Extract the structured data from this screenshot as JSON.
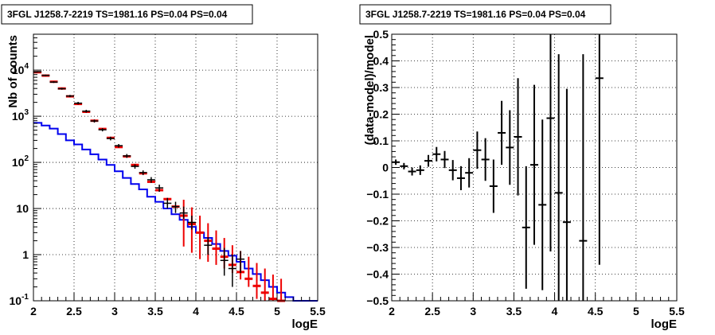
{
  "chart_data": [
    {
      "type": "step",
      "title": "3FGL J1258.7-2219 TS=1981.16 PS=0.04 PS=0.04",
      "xlabel": "logE",
      "ylabel": "Nb of counts",
      "xlim": [
        2,
        5.5
      ],
      "ylim": [
        0.1,
        60000
      ],
      "yscale": "log",
      "grid": true,
      "xticks": [
        "2",
        "2.5",
        "3",
        "3.5",
        "4",
        "4.5",
        "5",
        "5.5"
      ],
      "yticks": [
        {
          "v": 0.1,
          "base": "10",
          "exp": "-1"
        },
        {
          "v": 1,
          "base": "1",
          "exp": ""
        },
        {
          "v": 10,
          "base": "10",
          "exp": ""
        },
        {
          "v": 100,
          "base": "10",
          "exp": "2"
        },
        {
          "v": 1000,
          "base": "10",
          "exp": "3"
        },
        {
          "v": 10000,
          "base": "10",
          "exp": "4"
        }
      ],
      "bin_edges": [
        2,
        2.1,
        2.2,
        2.3,
        2.4,
        2.5,
        2.6,
        2.7,
        2.8,
        2.9,
        3.0,
        3.1,
        3.2,
        3.3,
        3.4,
        3.5,
        3.6,
        3.7,
        3.8,
        3.9,
        4.0,
        4.1,
        4.2,
        4.3,
        4.4,
        4.5,
        4.6,
        4.7,
        4.8,
        4.9,
        5.0,
        5.1,
        5.2,
        5.3,
        5.4,
        5.5
      ],
      "series": [
        {
          "kind": "model-step",
          "color": "#0000ee",
          "values": [
            720,
            630,
            540,
            410,
            300,
            245,
            190,
            150,
            115,
            88,
            64,
            46,
            34,
            26,
            18,
            14,
            10,
            7.5,
            5.7,
            4.0,
            3.0,
            2.3,
            1.7,
            1.2,
            0.95,
            0.7,
            0.5,
            0.38,
            0.28,
            0.2,
            0.15,
            0.12,
            0.1,
            0.1,
            0.1
          ]
        },
        {
          "kind": "model-prediction",
          "color": "#ee0000",
          "x": [
            2.05,
            2.15,
            2.25,
            2.35,
            2.45,
            2.55,
            2.65,
            2.75,
            2.85,
            2.95,
            3.05,
            3.15,
            3.25,
            3.35,
            3.45,
            3.55,
            3.65,
            3.75,
            3.85,
            3.95,
            4.05,
            4.15,
            4.25,
            4.35,
            4.45,
            4.55,
            4.65,
            4.75,
            4.85,
            4.95,
            5.05
          ],
          "y": [
            9000,
            7600,
            5600,
            4000,
            2700,
            1850,
            1250,
            800,
            530,
            340,
            215,
            135,
            88,
            58,
            38,
            25,
            16,
            11,
            7.0,
            4.6,
            3.0,
            2.0,
            1.35,
            0.9,
            0.6,
            0.42,
            0.3,
            0.21,
            0.15,
            0.11,
            0.1
          ],
          "yerr_lo": [
            9000,
            7600,
            5600,
            4000,
            2700,
            1850,
            1250,
            800,
            530,
            340,
            215,
            135,
            88,
            58,
            38,
            25,
            16,
            11,
            7.0,
            4.6,
            3.0,
            2.0,
            1.35,
            0.9,
            0.6,
            0.42,
            0.3,
            0.21,
            0.15,
            0.11,
            0.1
          ],
          "yerr_hi": [
            9000,
            7600,
            5600,
            4000,
            2700,
            1850,
            1250,
            800,
            530,
            340,
            215,
            135,
            88,
            58,
            38,
            25,
            16,
            11,
            7.0,
            4.6,
            3.0,
            2.0,
            1.35,
            0.9,
            0.6,
            0.42,
            0.3,
            0.21,
            0.15,
            0.11,
            0.1
          ],
          "err": [
            0,
            0,
            0,
            0,
            0,
            0,
            0,
            0,
            0,
            0,
            0,
            0,
            0,
            0,
            0,
            0,
            0,
            0,
            0,
            0,
            0,
            0,
            0,
            0,
            0,
            0,
            0,
            0,
            0,
            0,
            0
          ],
          "err_lo": [
            9000,
            7600,
            5600,
            4000,
            2700,
            1850,
            1250,
            800,
            530,
            340,
            215,
            135,
            88,
            58,
            38,
            25,
            16,
            11,
            5.5,
            3.5,
            2.2,
            1.3,
            0.75,
            0.4,
            0.2,
            0.13,
            0.1,
            0.1,
            0.1,
            0.1,
            0.1
          ],
          "err_hi": [
            9000,
            7600,
            5600,
            4000,
            2700,
            1850,
            1250,
            800,
            530,
            340,
            215,
            135,
            88,
            58,
            38,
            25,
            16,
            11,
            8.5,
            6.0,
            4.0,
            2.8,
            2.0,
            1.4,
            1.0,
            0.78,
            0.6,
            0.45,
            0.35,
            0.26,
            0.2
          ]
        },
        {
          "kind": "data",
          "color": "#000000",
          "x": [
            2.05,
            2.15,
            2.25,
            2.35,
            2.45,
            2.55,
            2.65,
            2.75,
            2.85,
            2.95,
            3.05,
            3.15,
            3.25,
            3.35,
            3.45,
            3.55,
            3.65,
            3.75,
            3.85,
            3.95,
            4.15,
            4.35,
            4.45,
            4.55
          ],
          "y": [
            9200,
            7700,
            5500,
            3950,
            2750,
            1920,
            1290,
            790,
            510,
            330,
            230,
            138,
            82,
            60,
            42,
            28,
            13,
            11,
            8,
            5,
            1.6,
            0.75,
            0.5,
            0.8
          ],
          "err_lo": [
            8900,
            7420,
            5270,
            3760,
            2600,
            1800,
            1200,
            730,
            470,
            300,
            210,
            125,
            73,
            53,
            36,
            23,
            10,
            8,
            6,
            3.5,
            1.0,
            0.35,
            0.2,
            0.4
          ],
          "err_hi": [
            9500,
            7980,
            5730,
            4140,
            2900,
            2050,
            1380,
            850,
            550,
            360,
            250,
            152,
            91,
            67,
            48,
            33,
            17,
            14,
            11,
            7,
            2.4,
            1.4,
            1.0,
            1.2
          ]
        }
      ]
    },
    {
      "type": "scatter",
      "title": "3FGL J1258.7-2219 TS=1981.16 PS=0.04 PS=0.04",
      "xlabel": "logE",
      "ylabel": "(data-model)/model",
      "xlim": [
        2,
        5.5
      ],
      "ylim": [
        -0.5,
        0.5
      ],
      "grid": true,
      "xticks": [
        "2",
        "2.5",
        "3",
        "3.5",
        "4",
        "4.5",
        "5",
        "5.5"
      ],
      "yticks": [
        "−0.5",
        "−0.4",
        "−0.3",
        "−0.2",
        "−0.1",
        "0",
        "0.1",
        "0.2",
        "0.3",
        "0.4",
        "0.5"
      ],
      "yticks_v": [
        -0.5,
        -0.4,
        -0.3,
        -0.2,
        -0.1,
        0,
        0.1,
        0.2,
        0.3,
        0.4,
        0.5
      ],
      "x": [
        2.05,
        2.15,
        2.25,
        2.35,
        2.45,
        2.55,
        2.65,
        2.75,
        2.85,
        2.95,
        3.05,
        3.15,
        3.25,
        3.35,
        3.45,
        3.55,
        3.65,
        3.75,
        3.85,
        3.95,
        4.05,
        4.15,
        4.35,
        4.55
      ],
      "y": [
        0.02,
        0.005,
        -0.015,
        -0.01,
        0.025,
        0.05,
        0.03,
        -0.01,
        -0.04,
        -0.02,
        0.065,
        0.03,
        -0.07,
        0.13,
        0.075,
        0.115,
        -0.225,
        0.01,
        -0.14,
        0.185,
        -0.095,
        -0.205,
        -0.275,
        0.335
      ],
      "yerr": [
        0.01,
        0.012,
        0.015,
        0.018,
        0.022,
        0.027,
        0.032,
        0.038,
        0.045,
        0.055,
        0.07,
        0.08,
        0.1,
        0.12,
        0.14,
        0.22,
        0.23,
        0.3,
        0.32,
        0.5,
        0.52,
        0.5,
        0.7,
        0.7
      ]
    }
  ]
}
